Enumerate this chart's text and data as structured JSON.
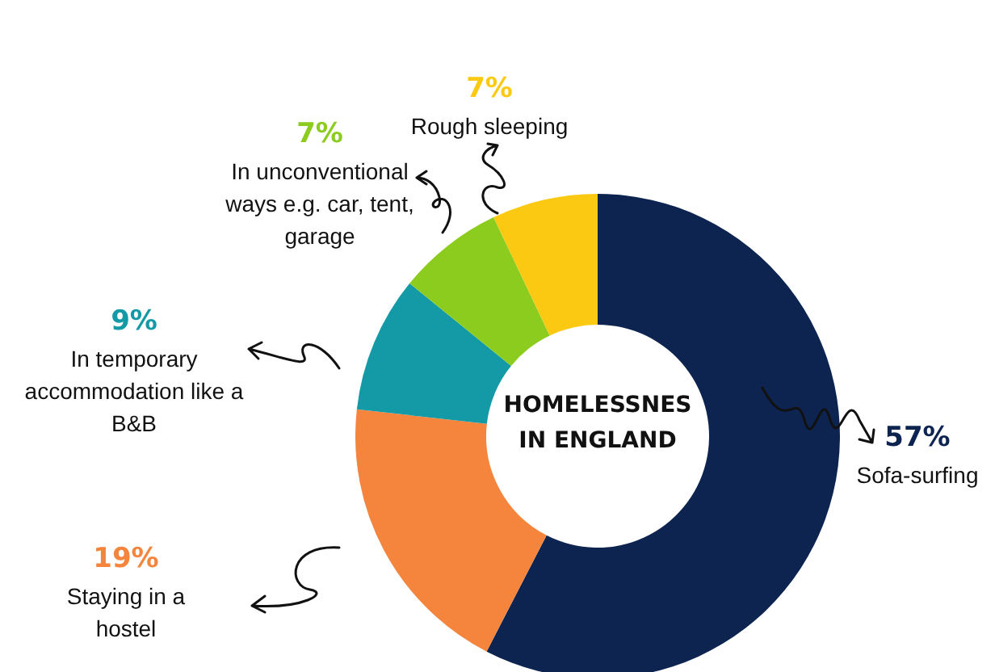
{
  "chart_data": {
    "type": "donut",
    "title": "HOMELESSNES IN ENGLAND",
    "categories": [
      "Sofa-surfing",
      "Staying in a hostel",
      "In temporary accommodation like a B&B",
      "In unconventional ways e.g. car, tent, garage",
      "Rough sleeping"
    ],
    "values": [
      57,
      19,
      9,
      7,
      7
    ],
    "colors": [
      "#0d2451",
      "#f5853c",
      "#1499a6",
      "#8ccc1e",
      "#fbc912"
    ],
    "value_labels": [
      "57%",
      "19%",
      "9%",
      "7%",
      "7%"
    ],
    "legend": false
  }
}
